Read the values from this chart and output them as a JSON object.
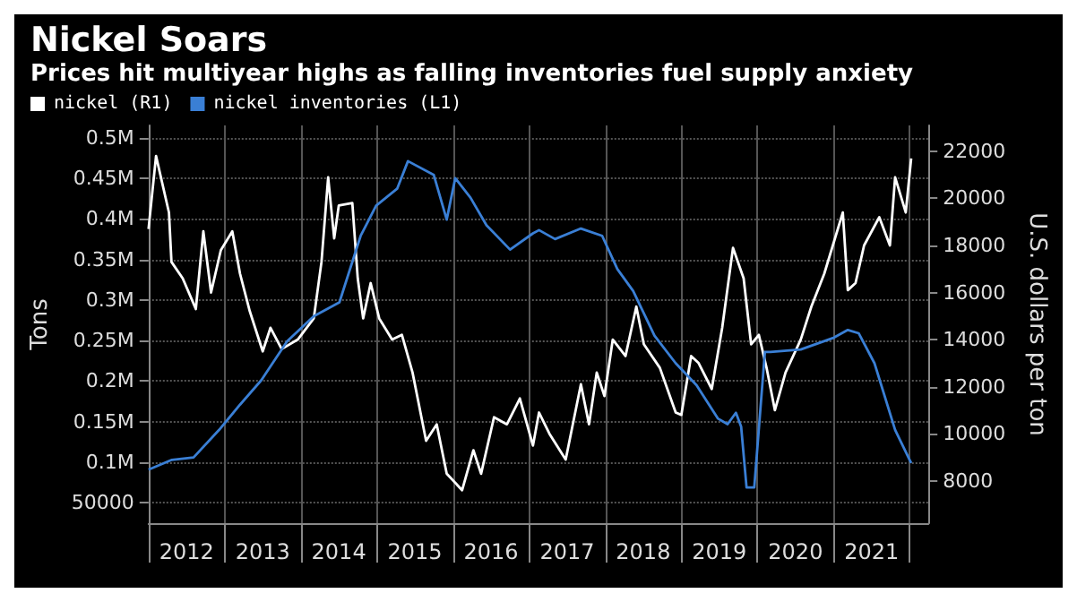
{
  "chart_data": {
    "type": "line",
    "title": "Nickel Soars",
    "subtitle": "Prices hit multiyear highs as falling inventories fuel supply anxiety",
    "ylabel": "Tons",
    "y2label": "U.S. dollars per ton",
    "legend": "top left",
    "grid": true,
    "marker": "none",
    "line_style": "solid",
    "xlim": [
      "2012-01-01",
      "2022-04-01"
    ],
    "xticks": [
      {
        "value": "2012-01-01",
        "label": null
      },
      {
        "value": "2012-07-02",
        "label": "2012"
      },
      {
        "value": "2013-01-01",
        "label": null
      },
      {
        "value": "2013-07-02",
        "label": "2013"
      },
      {
        "value": "2014-01-01",
        "label": null
      },
      {
        "value": "2014-07-02",
        "label": "2014"
      },
      {
        "value": "2015-01-01",
        "label": null
      },
      {
        "value": "2015-07-02",
        "label": "2015"
      },
      {
        "value": "2016-01-01",
        "label": null
      },
      {
        "value": "2016-07-02",
        "label": "2016"
      },
      {
        "value": "2017-01-01",
        "label": null
      },
      {
        "value": "2017-07-02",
        "label": "2017"
      },
      {
        "value": "2018-01-01",
        "label": null
      },
      {
        "value": "2018-07-02",
        "label": "2018"
      },
      {
        "value": "2019-01-01",
        "label": null
      },
      {
        "value": "2019-07-02",
        "label": "2019"
      },
      {
        "value": "2020-01-01",
        "label": null
      },
      {
        "value": "2020-07-02",
        "label": "2020"
      },
      {
        "value": "2021-01-01",
        "label": null
      },
      {
        "value": "2021-07-02",
        "label": "2021"
      },
      {
        "value": "2022-01-01",
        "label": null
      }
    ],
    "ylim": [
      25000,
      515000
    ],
    "yticks": [
      {
        "value": 50000,
        "label": "50000"
      },
      {
        "value": 100000,
        "label": "0.1M"
      },
      {
        "value": 150000,
        "label": "0.15M"
      },
      {
        "value": 200000,
        "label": "0.2M"
      },
      {
        "value": 250000,
        "label": "0.25M"
      },
      {
        "value": 300000,
        "label": "0.3M"
      },
      {
        "value": 350000,
        "label": "0.35M"
      },
      {
        "value": 400000,
        "label": "0.4M"
      },
      {
        "value": 450000,
        "label": "0.45M"
      },
      {
        "value": 500000,
        "label": "0.5M"
      }
    ],
    "y2lim": [
      6200,
      23100
    ],
    "y2ticks": [
      8000,
      10000,
      12000,
      14000,
      16000,
      18000,
      20000,
      22000
    ],
    "series": [
      {
        "name": "nickel (R1)",
        "color": "#ffffff",
        "axis": "y2",
        "x": [
          "2012-01-01",
          "2012-02-06",
          "2012-04-08",
          "2012-04-20",
          "2012-06-13",
          "2012-08-15",
          "2012-09-20",
          "2012-10-27",
          "2012-12-13",
          "2013-02-06",
          "2013-03-15",
          "2013-05-01",
          "2013-07-02",
          "2013-08-08",
          "2013-10-01",
          "2013-12-17",
          "2014-03-04",
          "2014-04-10",
          "2014-05-12",
          "2014-06-10",
          "2014-07-02",
          "2014-09-05",
          "2014-10-01",
          "2014-10-27",
          "2014-12-02",
          "2015-01-12",
          "2015-03-15",
          "2015-05-01",
          "2015-06-21",
          "2015-08-25",
          "2015-10-15",
          "2015-12-02",
          "2016-02-14",
          "2016-04-08",
          "2016-05-15",
          "2016-07-16",
          "2016-09-16",
          "2016-11-17",
          "2017-01-19",
          "2017-02-17",
          "2017-04-08",
          "2017-06-25",
          "2017-09-06",
          "2017-10-15",
          "2017-11-21",
          "2017-12-28",
          "2018-02-06",
          "2018-04-08",
          "2018-05-30",
          "2018-07-05",
          "2018-09-20",
          "2018-12-05",
          "2019-01-01",
          "2019-02-17",
          "2019-03-25",
          "2019-05-27",
          "2019-07-16",
          "2019-09-06",
          "2019-10-27",
          "2019-12-02",
          "2020-01-08",
          "2020-02-14",
          "2020-03-25",
          "2020-05-15",
          "2020-07-27",
          "2020-09-16",
          "2020-11-17",
          "2021-02-14",
          "2021-03-10",
          "2021-04-16",
          "2021-05-27",
          "2021-08-08",
          "2021-09-28",
          "2021-10-23",
          "2021-12-13",
          "2022-01-08"
        ],
        "values": [
          18700,
          21800,
          19400,
          17300,
          16600,
          15300,
          18600,
          16000,
          17800,
          18600,
          16800,
          15200,
          13500,
          14500,
          13600,
          14000,
          14900,
          17300,
          20900,
          18300,
          19700,
          19800,
          16600,
          14900,
          16400,
          14900,
          14000,
          14200,
          12600,
          9700,
          10400,
          8300,
          7600,
          9300,
          8300,
          10700,
          10400,
          11500,
          9500,
          10900,
          10000,
          8900,
          12100,
          10400,
          12600,
          11600,
          14000,
          13300,
          15400,
          13800,
          12800,
          10900,
          10800,
          13300,
          13000,
          11900,
          14500,
          17900,
          16600,
          13800,
          14200,
          12800,
          11000,
          12600,
          14000,
          15400,
          16800,
          19400,
          16100,
          16400,
          18000,
          19200,
          18000,
          20900,
          19400,
          21700
        ]
      },
      {
        "name": "nickel inventories (L1)",
        "color": "#3a7fd5",
        "x": [
          "2012-01-01",
          "2012-04-22",
          "2012-08-04",
          "2012-12-05",
          "2013-03-15",
          "2013-06-25",
          "2013-10-27",
          "2014-03-04",
          "2014-07-05",
          "2014-10-15",
          "2014-12-28",
          "2015-04-08",
          "2015-05-30",
          "2015-10-01",
          "2015-12-02",
          "2016-01-12",
          "2016-03-25",
          "2016-06-10",
          "2016-10-01",
          "2017-01-19",
          "2017-02-17",
          "2017-05-05",
          "2017-09-06",
          "2017-12-17",
          "2018-02-28",
          "2018-05-15",
          "2018-08-25",
          "2018-12-05",
          "2019-03-15",
          "2019-06-25",
          "2019-08-11",
          "2019-09-20",
          "2019-10-15",
          "2019-11-10",
          "2019-12-17",
          "2020-02-06",
          "2020-03-04",
          "2020-07-27",
          "2020-12-28",
          "2021-03-10",
          "2021-05-01",
          "2021-07-16",
          "2021-10-23",
          "2022-01-08"
        ],
        "values": [
          91000,
          103000,
          106000,
          140000,
          171000,
          201000,
          249000,
          280000,
          297000,
          379000,
          416000,
          437000,
          471000,
          454000,
          399000,
          450000,
          426000,
          392000,
          362000,
          382000,
          386000,
          375000,
          388000,
          379000,
          338000,
          311000,
          256000,
          222000,
          195000,
          154000,
          147000,
          161000,
          144000,
          69000,
          69000,
          236000,
          236000,
          239000,
          253000,
          263000,
          259000,
          222000,
          140000,
          99000
        ]
      }
    ]
  }
}
